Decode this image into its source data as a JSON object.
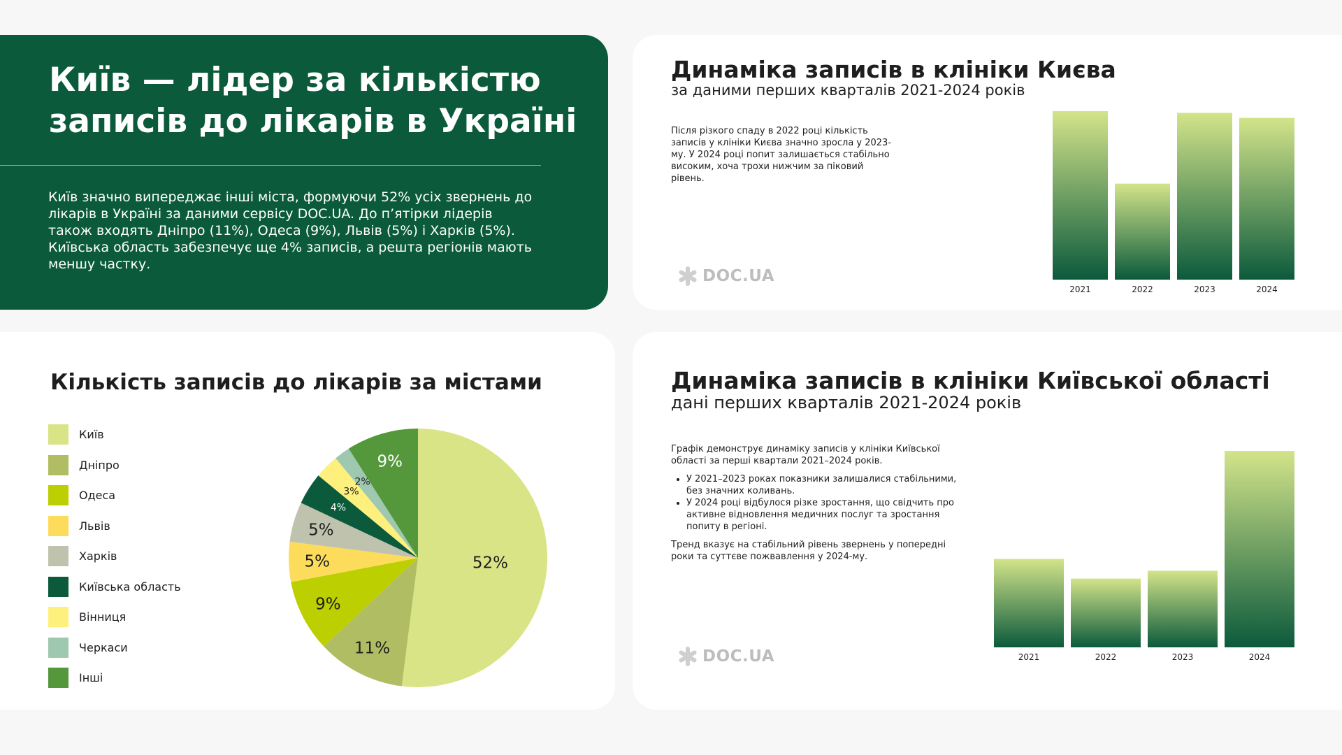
{
  "hero": {
    "title_line1": "Київ — лідер за кількістю",
    "title_line2": "записів до лікарів в Україні",
    "body": "Київ значно випереджає інші міста, формуючи 52% усіх звернень до лікарів в Україні за даними сервісу DOC.UA. До п’ятірки лідерів також входять Дніпро (11%), Одеса (9%), Львів (5%) і Харків (5%). Київська область забезпечує ще 4% записів, а решта регіонів мають меншу частку."
  },
  "brand": {
    "logo_text": "DOC.UA",
    "colors": {
      "dark_green": "#0b5a3c",
      "light_green": "#d3e48a"
    }
  },
  "kyiv_card": {
    "title": "Динаміка записів в клініки Києва",
    "subtitle": "за даними перших кварталів 2021-2024 років",
    "note": "Після різкого спаду в 2022 році кількість записів у клініки Києва значно зросла у 2023-му. У 2024 році попит залишається стабільно високим, хоча трохи нижчим за піковий рівень."
  },
  "region_card": {
    "title": "Динаміка записів в клініки Київської області",
    "subtitle": "дані перших кварталів 2021-2024 років",
    "intro": "Графік демонструє динаміку записів у клініки Київської області за перші квартали 2021–2024 років.",
    "bullets": [
      "У 2021–2023 роках показники залишалися стабільними, без значних коливань.",
      "У 2024 році відбулося різке зростання, що свідчить про активне відновлення медичних послуг та зростання попиту в регіоні."
    ],
    "outro": "Тренд вказує на стабільний рівень звернень у попередні роки та суттєве пожвавлення у 2024-му."
  },
  "pie_card": {
    "title": "Кількість записів до лікарів за містами"
  },
  "chart_data": [
    {
      "type": "bar",
      "categories": [
        "2021",
        "2022",
        "2023",
        "2024"
      ],
      "values": [
        100,
        57,
        99,
        96
      ],
      "ylim": [
        0,
        100
      ],
      "colors": {
        "top": "#d3e48a",
        "bottom": "#0b5a3c"
      }
    },
    {
      "type": "bar",
      "categories": [
        "2021",
        "2022",
        "2023",
        "2024"
      ],
      "values": [
        45,
        35,
        39,
        100
      ],
      "ylim": [
        0,
        100
      ],
      "colors": {
        "top": "#d3e48a",
        "bottom": "#0b5a3c"
      }
    },
    {
      "type": "pie",
      "title": "Кількість записів до лікарів за містами",
      "slices": [
        {
          "label": "Київ",
          "value": 52,
          "display": "52%",
          "color": "#d9e486"
        },
        {
          "label": "Дніпро",
          "value": 11,
          "display": "11%",
          "color": "#b1bd62"
        },
        {
          "label": "Одеса",
          "value": 9,
          "display": "9%",
          "color": "#bccf00"
        },
        {
          "label": "Львів",
          "value": 5,
          "display": "5%",
          "color": "#fddc5c"
        },
        {
          "label": "Харків",
          "value": 5,
          "display": "5%",
          "color": "#bfc3ae"
        },
        {
          "label": "Київська область",
          "value": 4,
          "display": "4%",
          "color": "#0b5a3c"
        },
        {
          "label": "Вінниця",
          "value": 3,
          "display": "3%",
          "color": "#fdf07c"
        },
        {
          "label": "Черкаси",
          "value": 2,
          "display": "2%",
          "color": "#9fc8b0"
        },
        {
          "label": "Інші",
          "value": 9,
          "display": "9%",
          "color": "#55983b"
        }
      ]
    }
  ]
}
